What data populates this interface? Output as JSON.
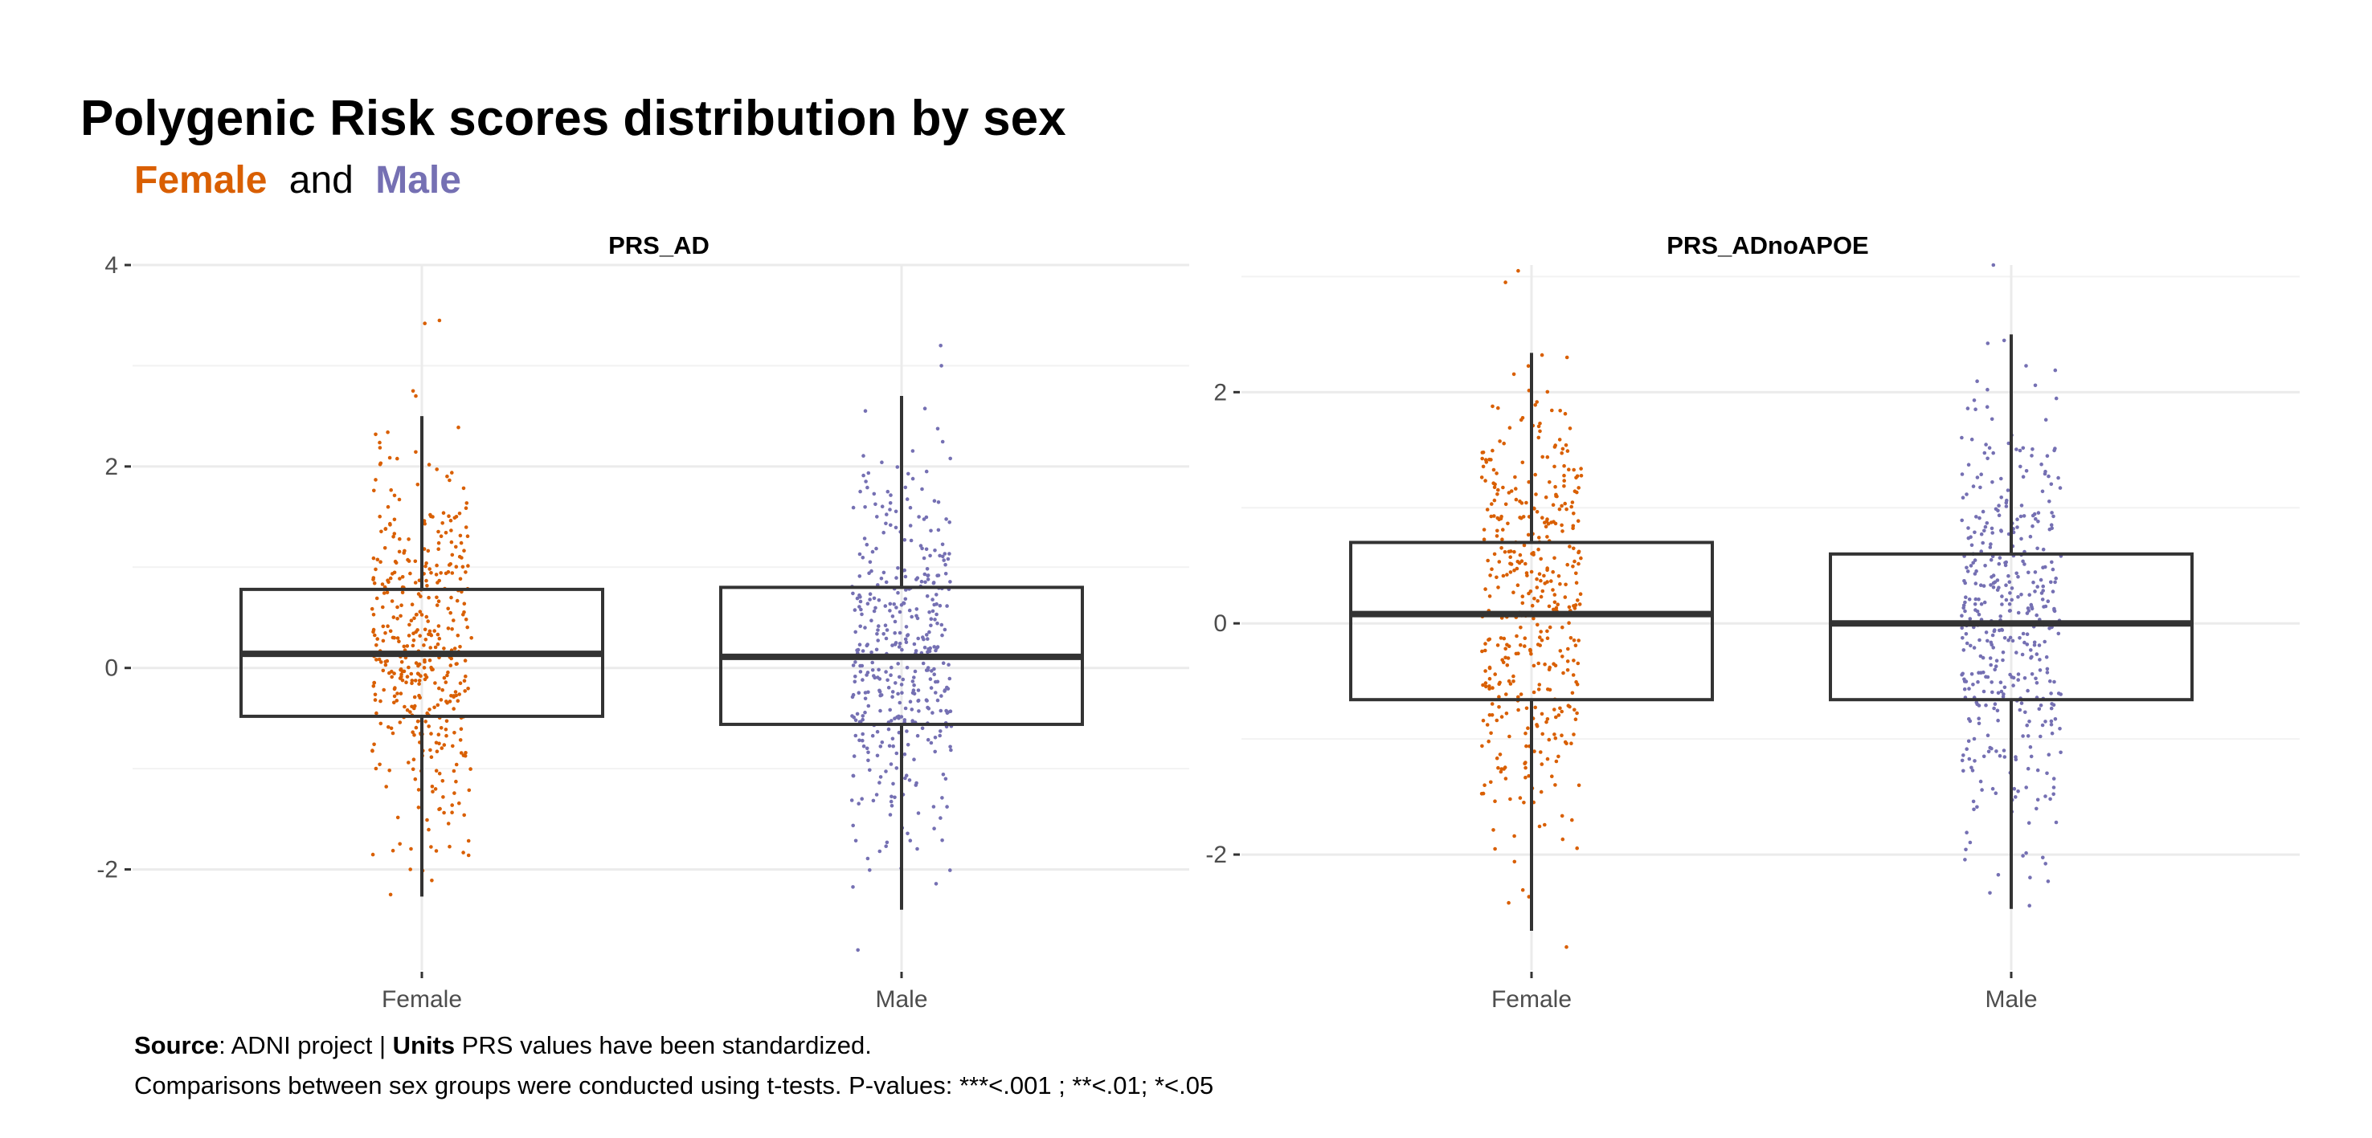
{
  "header": {
    "title": "Polygenic Risk scores distribution by sex",
    "subtitle_female": "Female",
    "subtitle_and": "and",
    "subtitle_male": "Male"
  },
  "caption": {
    "source_label": "Source",
    "source_text": ": ADNI project | ",
    "units_label": "Units",
    "units_text": " PRS values have been standardized.",
    "line2": "Comparisons between sex groups were conducted using t-tests. P-values: ***<.001 ; **<.01; *<.05"
  },
  "colors": {
    "female": "#d95f02",
    "male": "#7570b3",
    "box": "#333333",
    "grid": "#ebebeb"
  },
  "chart_data": [
    {
      "type": "boxplot",
      "title": "PRS_AD",
      "categories": [
        "Female",
        "Male"
      ],
      "ylim": [
        -3.0,
        4.0
      ],
      "yticks": [
        -2,
        0,
        2,
        4
      ],
      "ytick_labels": [
        "-2",
        "0",
        "2",
        "4"
      ],
      "grid": true,
      "series": [
        {
          "name": "Female",
          "q1": -0.48,
          "median": 0.14,
          "q3": 0.78,
          "whisker_low": -2.27,
          "whisker_high": 2.5,
          "outliers": [
            3.45,
            3.42,
            2.75,
            2.7
          ]
        },
        {
          "name": "Male",
          "q1": -0.56,
          "median": 0.11,
          "q3": 0.8,
          "whisker_low": -2.4,
          "whisker_high": 2.7,
          "outliers": [
            3.2,
            3.0,
            -2.8
          ]
        }
      ]
    },
    {
      "type": "boxplot",
      "title": "PRS_ADnoAPOE",
      "categories": [
        "Female",
        "Male"
      ],
      "ylim": [
        -3.0,
        3.1
      ],
      "yticks": [
        -2,
        0,
        2
      ],
      "ytick_labels": [
        "-2",
        "0",
        "2"
      ],
      "grid": true,
      "series": [
        {
          "name": "Female",
          "q1": -0.66,
          "median": 0.08,
          "q3": 0.7,
          "whisker_low": -2.66,
          "whisker_high": 2.34,
          "outliers": [
            3.05,
            2.95,
            -2.8
          ]
        },
        {
          "name": "Male",
          "q1": -0.66,
          "median": 0.0,
          "q3": 0.6,
          "whisker_low": -2.47,
          "whisker_high": 2.5,
          "outliers": [
            3.1
          ]
        }
      ]
    }
  ]
}
